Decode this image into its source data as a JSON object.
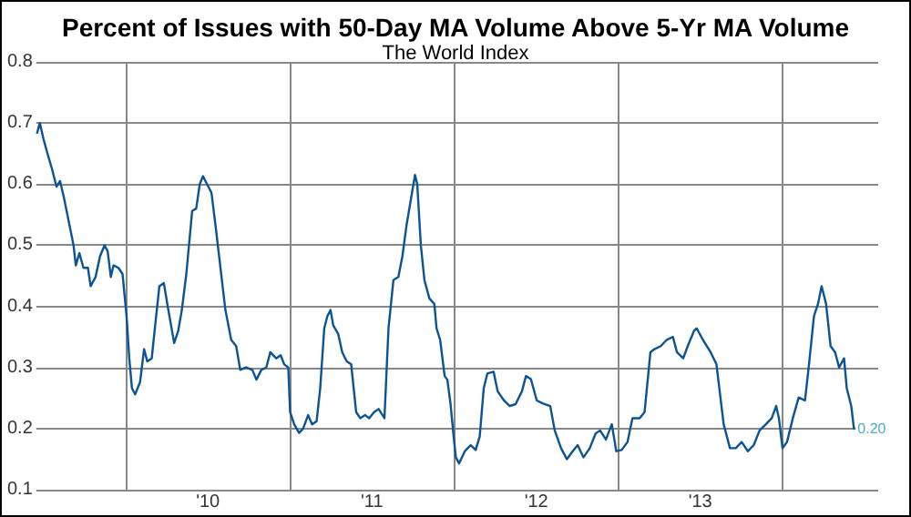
{
  "chart_data": {
    "type": "line",
    "title": "Percent of Issues with 50-Day MA Volume Above 5-Yr MA Volume",
    "subtitle": "The World Index",
    "x": [
      "2009-06-17",
      "2009-06-23",
      "2009-07-01",
      "2009-07-10",
      "2009-07-20",
      "2009-07-30",
      "2009-08-07",
      "2009-08-15",
      "2009-08-26",
      "2009-09-06",
      "2009-09-11",
      "2009-09-19",
      "2009-09-28",
      "2009-10-08",
      "2009-10-14",
      "2009-10-25",
      "2009-11-04",
      "2009-11-14",
      "2009-11-21",
      "2009-11-28",
      "2009-12-04",
      "2009-12-15",
      "2009-12-24",
      "2010-01-02",
      "2010-01-08",
      "2010-01-14",
      "2010-01-21",
      "2010-02-01",
      "2010-02-10",
      "2010-02-17",
      "2010-02-27",
      "2010-03-06",
      "2010-03-16",
      "2010-03-26",
      "2010-04-05",
      "2010-04-18",
      "2010-04-27",
      "2010-05-05",
      "2010-05-15",
      "2010-05-28",
      "2010-06-06",
      "2010-06-14",
      "2010-06-21",
      "2010-06-30",
      "2010-07-10",
      "2010-07-21",
      "2010-07-30",
      "2010-08-10",
      "2010-08-23",
      "2010-09-03",
      "2010-09-12",
      "2010-09-25",
      "2010-10-09",
      "2010-10-18",
      "2010-10-29",
      "2010-11-09",
      "2010-11-18",
      "2010-12-01",
      "2010-12-11",
      "2010-12-19",
      "2010-12-28",
      "2011-01-01",
      "2011-01-10",
      "2011-01-21",
      "2011-01-30",
      "2011-02-10",
      "2011-02-19",
      "2011-03-01",
      "2011-03-09",
      "2011-03-18",
      "2011-03-25",
      "2011-04-01",
      "2011-04-07",
      "2011-04-18",
      "2011-04-27",
      "2011-05-07",
      "2011-05-17",
      "2011-05-28",
      "2011-06-06",
      "2011-06-17",
      "2011-06-26",
      "2011-07-07",
      "2011-07-17",
      "2011-07-30",
      "2011-08-08",
      "2011-08-19",
      "2011-08-30",
      "2011-09-08",
      "2011-09-17",
      "2011-09-28",
      "2011-10-06",
      "2011-10-11",
      "2011-10-19",
      "2011-10-27",
      "2011-11-07",
      "2011-11-18",
      "2011-11-23",
      "2011-12-01",
      "2011-12-11",
      "2011-12-17",
      "2011-12-24",
      "2011-12-31",
      "2012-01-05",
      "2012-01-12",
      "2012-01-25",
      "2012-02-07",
      "2012-02-18",
      "2012-02-27",
      "2012-03-07",
      "2012-03-15",
      "2012-03-29",
      "2012-04-07",
      "2012-04-21",
      "2012-05-04",
      "2012-05-17",
      "2012-05-31",
      "2012-06-09",
      "2012-06-20",
      "2012-07-03",
      "2012-07-17",
      "2012-08-02",
      "2012-08-12",
      "2012-08-26",
      "2012-09-08",
      "2012-09-21",
      "2012-10-02",
      "2012-10-15",
      "2012-10-29",
      "2012-11-11",
      "2012-11-21",
      "2012-12-04",
      "2012-12-17",
      "2012-12-27",
      "2013-01-08",
      "2013-01-21",
      "2013-02-01",
      "2013-02-17",
      "2013-02-28",
      "2013-03-13",
      "2013-03-22",
      "2013-04-05",
      "2013-04-18",
      "2013-05-02",
      "2013-05-11",
      "2013-05-25",
      "2013-06-04",
      "2013-06-18",
      "2013-06-24",
      "2013-07-08",
      "2013-07-25",
      "2013-08-07",
      "2013-08-23",
      "2013-09-06",
      "2013-09-19",
      "2013-10-02",
      "2013-10-16",
      "2013-10-29",
      "2013-11-11",
      "2013-11-25",
      "2013-12-08",
      "2013-12-18",
      "2013-12-24",
      "2014-01-01",
      "2014-01-11",
      "2014-01-24",
      "2014-02-06",
      "2014-02-20",
      "2014-03-01",
      "2014-03-12",
      "2014-03-21",
      "2014-03-29",
      "2014-04-08",
      "2014-04-18",
      "2014-04-28",
      "2014-05-07",
      "2014-05-18",
      "2014-05-24",
      "2014-06-03",
      "2014-06-09"
    ],
    "series": [
      {
        "color": "#0b5394",
        "values": [
          0.684,
          0.7,
          0.674,
          0.65,
          0.625,
          0.596,
          0.605,
          0.58,
          0.54,
          0.5,
          0.467,
          0.487,
          0.463,
          0.463,
          0.433,
          0.448,
          0.482,
          0.5,
          0.49,
          0.448,
          0.467,
          0.463,
          0.453,
          0.384,
          0.315,
          0.266,
          0.256,
          0.276,
          0.33,
          0.31,
          0.315,
          0.364,
          0.433,
          0.438,
          0.394,
          0.34,
          0.36,
          0.394,
          0.453,
          0.556,
          0.56,
          0.6,
          0.613,
          0.6,
          0.586,
          0.52,
          0.463,
          0.394,
          0.345,
          0.335,
          0.296,
          0.3,
          0.296,
          0.28,
          0.296,
          0.3,
          0.325,
          0.315,
          0.32,
          0.305,
          0.3,
          0.227,
          0.207,
          0.193,
          0.2,
          0.222,
          0.207,
          0.212,
          0.266,
          0.364,
          0.384,
          0.394,
          0.369,
          0.355,
          0.325,
          0.31,
          0.305,
          0.227,
          0.217,
          0.222,
          0.217,
          0.227,
          0.232,
          0.217,
          0.364,
          0.443,
          0.448,
          0.482,
          0.532,
          0.58,
          0.615,
          0.6,
          0.5,
          0.443,
          0.413,
          0.404,
          0.364,
          0.345,
          0.286,
          0.28,
          0.241,
          0.187,
          0.153,
          0.143,
          0.163,
          0.173,
          0.165,
          0.187,
          0.266,
          0.29,
          0.293,
          0.261,
          0.246,
          0.237,
          0.24,
          0.261,
          0.286,
          0.281,
          0.246,
          0.241,
          0.237,
          0.197,
          0.168,
          0.15,
          0.163,
          0.173,
          0.153,
          0.168,
          0.192,
          0.197,
          0.182,
          0.207,
          0.163,
          0.165,
          0.178,
          0.217,
          0.217,
          0.227,
          0.325,
          0.33,
          0.335,
          0.345,
          0.35,
          0.325,
          0.315,
          0.335,
          0.36,
          0.364,
          0.345,
          0.325,
          0.305,
          0.207,
          0.168,
          0.168,
          0.178,
          0.163,
          0.173,
          0.197,
          0.207,
          0.217,
          0.237,
          0.217,
          0.168,
          0.178,
          0.217,
          0.251,
          0.246,
          0.305,
          0.384,
          0.404,
          0.433,
          0.404,
          0.335,
          0.325,
          0.3,
          0.315,
          0.266,
          0.237,
          0.2
        ],
        "value_labels": [
          null,
          null,
          null,
          null,
          null,
          null,
          null,
          null,
          null,
          null,
          null,
          null,
          null,
          null,
          null,
          null,
          null,
          null,
          null,
          null,
          null,
          null,
          null,
          null,
          null,
          null,
          null,
          null,
          null,
          null,
          null,
          null,
          null,
          null,
          null,
          null,
          null,
          null,
          null,
          null,
          null,
          null,
          null,
          null,
          null,
          null,
          null,
          null,
          null,
          null,
          null,
          null,
          null,
          null,
          null,
          null,
          null,
          null,
          null,
          null,
          null,
          null,
          null,
          null,
          null,
          null,
          null,
          null,
          null,
          null,
          null,
          null,
          null,
          null,
          null,
          null,
          null,
          null,
          null,
          null,
          null,
          null,
          null,
          null,
          null,
          null,
          null,
          null,
          null,
          null,
          null,
          null,
          null,
          null,
          null,
          null,
          null,
          null,
          null,
          null,
          null,
          null,
          null,
          null,
          null,
          null,
          null,
          null,
          null,
          null,
          null,
          null,
          null,
          null,
          null,
          null,
          null,
          null,
          null,
          null,
          null,
          null,
          null,
          null,
          null,
          null,
          null,
          null,
          null,
          null,
          null,
          null,
          null,
          null,
          null,
          null,
          null,
          null,
          null,
          null,
          null,
          null,
          null,
          null,
          null,
          null,
          null,
          null,
          null,
          null,
          null,
          null,
          null,
          null,
          null,
          null,
          null,
          null,
          null,
          null,
          null,
          null,
          null,
          null,
          null,
          null,
          null,
          null,
          null,
          null,
          null,
          null,
          null,
          null,
          null,
          null,
          null,
          null,
          "0.20"
        ]
      }
    ],
    "xlim": [
      "2009-06-15",
      "2014-08-02"
    ],
    "xticks": [
      {
        "value": "2010-01-01",
        "label": null
      },
      {
        "value": "2010-07-02",
        "label": "'10"
      },
      {
        "value": "2011-01-01",
        "label": null
      },
      {
        "value": "2011-07-02",
        "label": "'11"
      },
      {
        "value": "2012-01-01",
        "label": null
      },
      {
        "value": "2012-07-02",
        "label": "'12"
      },
      {
        "value": "2013-01-01",
        "label": null
      },
      {
        "value": "2013-07-02",
        "label": "'13"
      },
      {
        "value": "2014-01-01",
        "label": null
      }
    ],
    "ylim": [
      0.1,
      0.8
    ],
    "yticks": [
      0.1,
      0.2,
      0.3,
      0.4,
      0.5,
      0.6,
      0.7,
      0.8
    ],
    "grid": true,
    "marker": "none",
    "line_style": "solid"
  }
}
